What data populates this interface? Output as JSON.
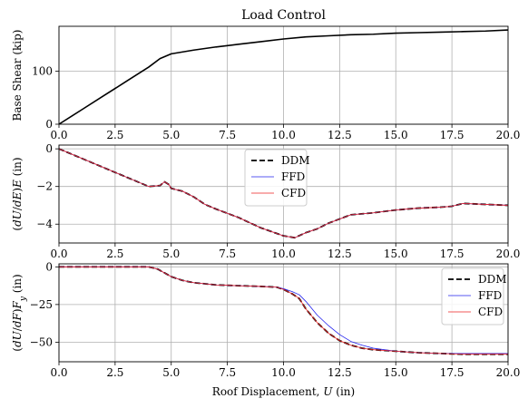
{
  "figure_title": "Load Control",
  "colors": {
    "ddm": "#000000",
    "ffd": "#2222ee",
    "cfd": "#ee2222",
    "grid": "#b0b0b0",
    "legend_border": "#cccccc"
  },
  "chart_data": [
    {
      "type": "line",
      "title": "Load Control",
      "xlabel": "",
      "ylabel": "Base Shear (kip)",
      "xlim": [
        0,
        20
      ],
      "ylim": [
        0,
        185
      ],
      "xticks": [
        "0.0",
        "2.5",
        "5.0",
        "7.5",
        "10.0",
        "12.5",
        "15.0",
        "17.5",
        "20.0"
      ],
      "yticks": [
        {
          "value": 0,
          "label": "0"
        },
        {
          "value": 100,
          "label": "100"
        }
      ],
      "grid": true,
      "legend": "none",
      "series": [
        {
          "style": "solid",
          "color": "#000000",
          "x": [
            0,
            1,
            2,
            3,
            4,
            4.5,
            5,
            6,
            7,
            8,
            9,
            10,
            11,
            12,
            13,
            14,
            15,
            16,
            17,
            18,
            19,
            20
          ],
          "y": [
            0,
            27,
            54,
            81,
            108,
            124,
            133,
            140,
            146,
            151,
            156,
            161,
            165,
            167,
            169,
            170,
            172,
            173,
            174,
            175,
            176,
            178
          ]
        }
      ]
    },
    {
      "type": "line",
      "title": "",
      "xlabel": "",
      "ylabel": "(dU/dE)E (in)",
      "xlim": [
        0,
        20
      ],
      "ylim": [
        -5,
        0.2
      ],
      "xticks": [
        "0.0",
        "2.5",
        "5.0",
        "7.5",
        "10.0",
        "12.5",
        "15.0",
        "17.5",
        "20.0"
      ],
      "yticks": [
        {
          "value": 0,
          "label": "0"
        },
        {
          "value": -2,
          "label": "−2"
        },
        {
          "value": -4,
          "label": "−4"
        }
      ],
      "grid": true,
      "legend": "upper-center",
      "series": [
        {
          "name": "DDM",
          "style": "dashed",
          "color": "#000000",
          "x": [
            0,
            1,
            2,
            3,
            4,
            4.5,
            4.7,
            4.9,
            5.0,
            5.5,
            6,
            6.5,
            7,
            8,
            9,
            10,
            10.5,
            11,
            11.5,
            12,
            13,
            14,
            15,
            16,
            17,
            17.5,
            18,
            19,
            20
          ],
          "y": [
            0,
            -0.5,
            -1.0,
            -1.5,
            -2.0,
            -1.95,
            -1.75,
            -1.9,
            -2.1,
            -2.25,
            -2.55,
            -2.95,
            -3.2,
            -3.65,
            -4.2,
            -4.62,
            -4.72,
            -4.45,
            -4.25,
            -3.95,
            -3.5,
            -3.4,
            -3.25,
            -3.15,
            -3.1,
            -3.05,
            -2.9,
            -2.95,
            -3.0
          ]
        },
        {
          "name": "FFD",
          "style": "solid",
          "color": "#2222ee",
          "x": [
            0,
            1,
            2,
            3,
            4,
            4.5,
            4.7,
            4.9,
            5.0,
            5.5,
            6,
            6.5,
            7,
            8,
            9,
            10,
            10.5,
            11,
            11.5,
            12,
            13,
            14,
            15,
            16,
            17,
            17.5,
            18,
            19,
            20
          ],
          "y": [
            0,
            -0.5,
            -1.0,
            -1.5,
            -2.0,
            -1.95,
            -1.75,
            -1.9,
            -2.1,
            -2.25,
            -2.55,
            -2.95,
            -3.2,
            -3.65,
            -4.2,
            -4.62,
            -4.72,
            -4.45,
            -4.25,
            -3.95,
            -3.5,
            -3.4,
            -3.25,
            -3.15,
            -3.1,
            -3.05,
            -2.9,
            -2.95,
            -3.0
          ]
        },
        {
          "name": "CFD",
          "style": "solid",
          "color": "#ee2222",
          "x": [
            0,
            1,
            2,
            3,
            4,
            4.5,
            4.7,
            4.9,
            5.0,
            5.5,
            6,
            6.5,
            7,
            8,
            9,
            10,
            10.5,
            11,
            11.5,
            12,
            13,
            14,
            15,
            16,
            17,
            17.5,
            18,
            19,
            20
          ],
          "y": [
            0,
            -0.5,
            -1.0,
            -1.5,
            -2.0,
            -1.95,
            -1.75,
            -1.9,
            -2.1,
            -2.25,
            -2.55,
            -2.95,
            -3.2,
            -3.65,
            -4.2,
            -4.62,
            -4.72,
            -4.45,
            -4.25,
            -3.95,
            -3.5,
            -3.4,
            -3.25,
            -3.15,
            -3.1,
            -3.05,
            -2.9,
            -2.95,
            -3.0
          ]
        }
      ]
    },
    {
      "type": "line",
      "title": "",
      "xlabel": "Roof Displacement, U (in)",
      "ylabel": "(dU/dF)Fy (in)",
      "xlim": [
        0,
        20
      ],
      "ylim": [
        -63,
        2
      ],
      "xticks": [
        "0.0",
        "2.5",
        "5.0",
        "7.5",
        "10.0",
        "12.5",
        "15.0",
        "17.5",
        "20.0"
      ],
      "yticks": [
        {
          "value": 0,
          "label": "0"
        },
        {
          "value": -25,
          "label": "−25"
        },
        {
          "value": -50,
          "label": "−50"
        }
      ],
      "grid": true,
      "legend": "upper-right",
      "series": [
        {
          "name": "DDM",
          "style": "dashed",
          "color": "#000000",
          "x": [
            0,
            1,
            2,
            3,
            4,
            4.4,
            4.7,
            5.0,
            5.5,
            6,
            7,
            8,
            9,
            9.7,
            10,
            10.4,
            10.7,
            11,
            11.5,
            12,
            12.5,
            13,
            13.5,
            14,
            15,
            16,
            17,
            18,
            19,
            20
          ],
          "y": [
            0,
            0,
            0,
            0,
            0,
            -1.5,
            -4,
            -6.5,
            -9,
            -10.5,
            -12,
            -12.5,
            -13,
            -13.5,
            -15,
            -18,
            -21,
            -28,
            -37,
            -44,
            -49,
            -52,
            -54,
            -55,
            -56,
            -57,
            -57.5,
            -58,
            -58,
            -58
          ]
        },
        {
          "name": "FFD",
          "style": "solid",
          "color": "#2222ee",
          "x": [
            0,
            1,
            2,
            3,
            4,
            4.4,
            4.7,
            5.0,
            5.5,
            6,
            7,
            8,
            9,
            9.7,
            10,
            10.4,
            10.7,
            11,
            11.5,
            12,
            12.5,
            13,
            13.5,
            14,
            15,
            16,
            17,
            18,
            19,
            20
          ],
          "y": [
            0,
            0,
            0,
            0,
            0,
            -1.5,
            -4,
            -6.5,
            -9,
            -10.5,
            -12,
            -12.5,
            -13,
            -13.5,
            -14.5,
            -16.5,
            -18.5,
            -23,
            -32,
            -39,
            -45,
            -49.5,
            -52,
            -54,
            -56,
            -57,
            -57.5,
            -57.5,
            -57.5,
            -57.5
          ]
        },
        {
          "name": "CFD",
          "style": "solid",
          "color": "#ee2222",
          "x": [
            0,
            1,
            2,
            3,
            4,
            4.4,
            4.7,
            5.0,
            5.5,
            6,
            7,
            8,
            9,
            9.7,
            10,
            10.4,
            10.7,
            11,
            11.5,
            12,
            12.5,
            13,
            13.5,
            14,
            15,
            16,
            17,
            18,
            19,
            20
          ],
          "y": [
            0,
            0,
            0,
            0,
            0,
            -1.5,
            -4,
            -6.5,
            -9,
            -10.5,
            -12,
            -12.5,
            -13,
            -13.5,
            -15,
            -18,
            -21,
            -28,
            -37,
            -44,
            -49,
            -52,
            -54,
            -55,
            -56,
            -57,
            -57.5,
            -58,
            -58,
            -58
          ]
        }
      ]
    }
  ]
}
